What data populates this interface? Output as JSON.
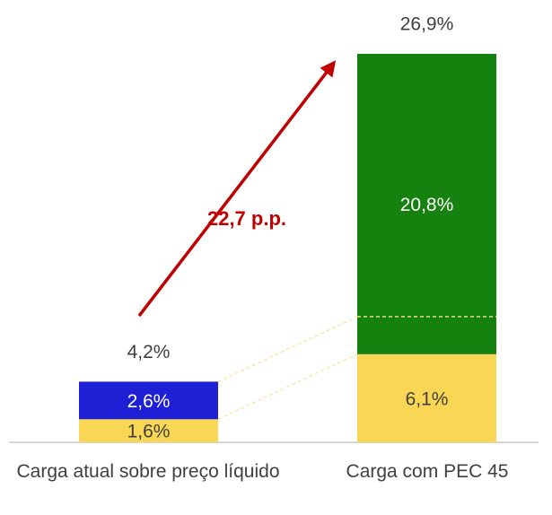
{
  "chart_data": {
    "type": "stacked-bar",
    "categories": [
      "Carga atual sobre preço líquido",
      "Carga com PEC 45"
    ],
    "series": [
      {
        "color": "#f9d653",
        "values": [
          1.6,
          6.1
        ],
        "value_labels": [
          "1,6%",
          "6,1%"
        ]
      },
      {
        "color": [
          "#1f1fd6",
          "#15810f"
        ],
        "values": [
          2.6,
          20.8
        ],
        "value_labels": [
          "2,6%",
          "20,8%"
        ]
      }
    ],
    "totals": [
      4.2,
      26.9
    ],
    "total_labels": [
      "4,2%",
      "26,9%"
    ],
    "annotation": "22,7 p.p."
  }
}
